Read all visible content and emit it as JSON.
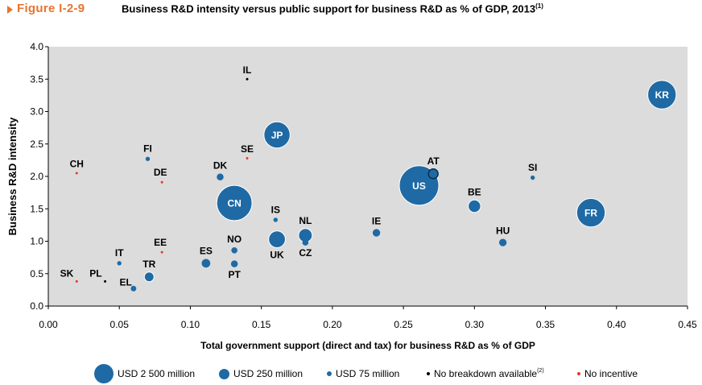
{
  "figure": {
    "label": "Figure I-2-9",
    "title": "Business R&D intensity versus public support for business R&D as % of GDP, 2013",
    "title_sup": "(1)"
  },
  "colors": {
    "bubble": "#1f6aa5",
    "bubble_stroke": "#ffffff",
    "no_breakdown": "#000000",
    "no_incentive": "#e8362d",
    "plot_bg": "#dcdcdc",
    "accent": "#e8742f"
  },
  "legend": {
    "large": "USD 2 500 million",
    "medium": "USD 250 million",
    "small": "USD 75 million",
    "no_breakdown": "No breakdown available",
    "no_breakdown_sup": "(2)",
    "no_incentive": "No incentive"
  },
  "chart_data": {
    "type": "scatter",
    "xlabel": "Total government support (direct and tax) for business R&D as % of GDP",
    "ylabel": "Business R&D intensity",
    "xlim": [
      0,
      0.45
    ],
    "ylim": [
      0,
      4.0
    ],
    "xticks": [
      "0.00",
      "0.05",
      "0.10",
      "0.15",
      "0.20",
      "0.25",
      "0.30",
      "0.35",
      "0.40",
      "0.45"
    ],
    "yticks": [
      "0.0",
      "0.5",
      "1.0",
      "1.5",
      "2.0",
      "2.5",
      "3.0",
      "3.5",
      "4.0"
    ],
    "grid": false,
    "size_legend_usd_million": [
      2500,
      250,
      75
    ],
    "points": [
      {
        "label": "KR",
        "x": 0.432,
        "y": 3.26,
        "support_usd_million": 1300,
        "category": "bubble"
      },
      {
        "label": "JP",
        "x": 0.161,
        "y": 2.64,
        "support_usd_million": 1100,
        "category": "bubble"
      },
      {
        "label": "US",
        "x": 0.261,
        "y": 1.86,
        "support_usd_million": 2500,
        "category": "bubble"
      },
      {
        "label": "CN",
        "x": 0.131,
        "y": 1.59,
        "support_usd_million": 2000,
        "category": "bubble"
      },
      {
        "label": "FR",
        "x": 0.382,
        "y": 1.44,
        "support_usd_million": 1300,
        "category": "bubble"
      },
      {
        "label": "BE",
        "x": 0.3,
        "y": 1.54,
        "support_usd_million": 250,
        "category": "bubble"
      },
      {
        "label": "UK",
        "x": 0.161,
        "y": 1.03,
        "support_usd_million": 450,
        "category": "bubble"
      },
      {
        "label": "NL",
        "x": 0.181,
        "y": 1.09,
        "support_usd_million": 300,
        "category": "bubble"
      },
      {
        "label": "AT",
        "x": 0.271,
        "y": 2.04,
        "support_usd_million": 150,
        "category": "bubble"
      },
      {
        "label": "TR",
        "x": 0.071,
        "y": 0.45,
        "support_usd_million": 150,
        "category": "bubble"
      },
      {
        "label": "ES",
        "x": 0.111,
        "y": 0.66,
        "support_usd_million": 120,
        "category": "bubble"
      },
      {
        "label": "HU",
        "x": 0.32,
        "y": 0.98,
        "support_usd_million": 90,
        "category": "bubble"
      },
      {
        "label": "IE",
        "x": 0.231,
        "y": 1.13,
        "support_usd_million": 90,
        "category": "bubble"
      },
      {
        "label": "PT",
        "x": 0.131,
        "y": 0.65,
        "support_usd_million": 75,
        "category": "bubble"
      },
      {
        "label": "DK",
        "x": 0.121,
        "y": 1.99,
        "support_usd_million": 75,
        "category": "bubble"
      },
      {
        "label": "NO",
        "x": 0.131,
        "y": 0.86,
        "support_usd_million": 60,
        "category": "bubble"
      },
      {
        "label": "CZ",
        "x": 0.181,
        "y": 0.98,
        "support_usd_million": 60,
        "category": "bubble"
      },
      {
        "label": "EL",
        "x": 0.06,
        "y": 0.27,
        "support_usd_million": 50,
        "category": "bubble"
      },
      {
        "label": "IS",
        "x": 0.16,
        "y": 1.33,
        "support_usd_million": 30,
        "category": "bubble"
      },
      {
        "label": "SI",
        "x": 0.341,
        "y": 1.98,
        "support_usd_million": 30,
        "category": "bubble"
      },
      {
        "label": "FI",
        "x": 0.07,
        "y": 2.27,
        "support_usd_million": 30,
        "category": "bubble"
      },
      {
        "label": "IT",
        "x": 0.05,
        "y": 0.66,
        "support_usd_million": 30,
        "category": "bubble"
      },
      {
        "label": "IL",
        "x": 0.14,
        "y": 3.5,
        "category": "no_breakdown"
      },
      {
        "label": "PL",
        "x": 0.04,
        "y": 0.38,
        "category": "no_breakdown"
      },
      {
        "label": "CH",
        "x": 0.02,
        "y": 2.05,
        "category": "no_incentive"
      },
      {
        "label": "SE",
        "x": 0.14,
        "y": 2.28,
        "category": "no_incentive"
      },
      {
        "label": "DE",
        "x": 0.08,
        "y": 1.91,
        "category": "no_incentive"
      },
      {
        "label": "EE",
        "x": 0.08,
        "y": 0.83,
        "category": "no_incentive"
      },
      {
        "label": "SK",
        "x": 0.02,
        "y": 0.38,
        "category": "no_incentive"
      }
    ]
  }
}
